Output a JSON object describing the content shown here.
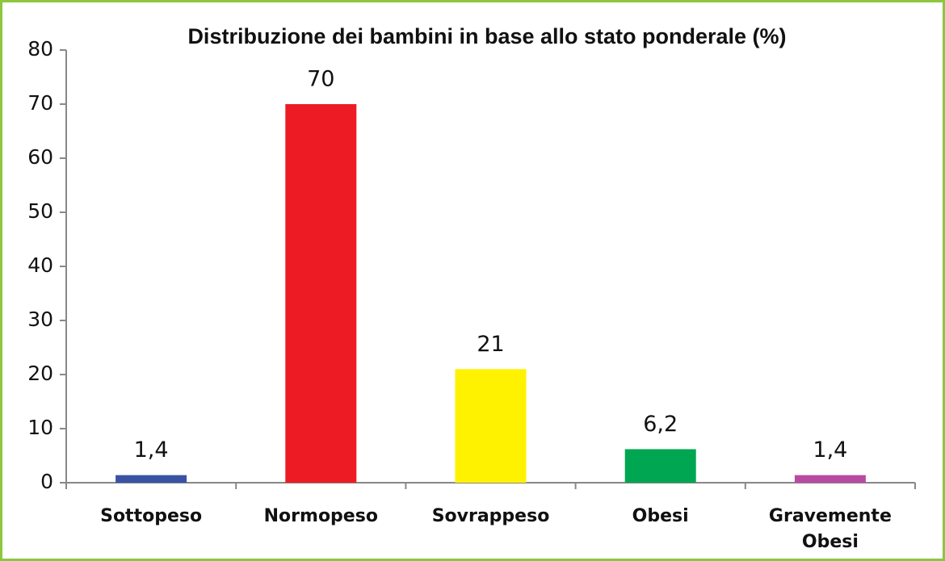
{
  "chart_data": {
    "type": "bar",
    "title": "Distribuzione dei bambini in base allo stato ponderale (%)",
    "categories": [
      "Sottopeso",
      "Normopeso",
      "Sovrappeso",
      "Obesi",
      "Gravemente Obesi"
    ],
    "values": [
      1.4,
      70,
      21,
      6.2,
      1.4
    ],
    "value_labels": [
      "1,4",
      "70",
      "21",
      "6,2",
      "1,4"
    ],
    "colors": [
      "#3953a4",
      "#ed1c24",
      "#fff200",
      "#00a651",
      "#b94aa2"
    ],
    "ylim": [
      0,
      80
    ],
    "yticks": [
      0,
      10,
      20,
      30,
      40,
      50,
      60,
      70,
      80
    ],
    "grid": false
  }
}
